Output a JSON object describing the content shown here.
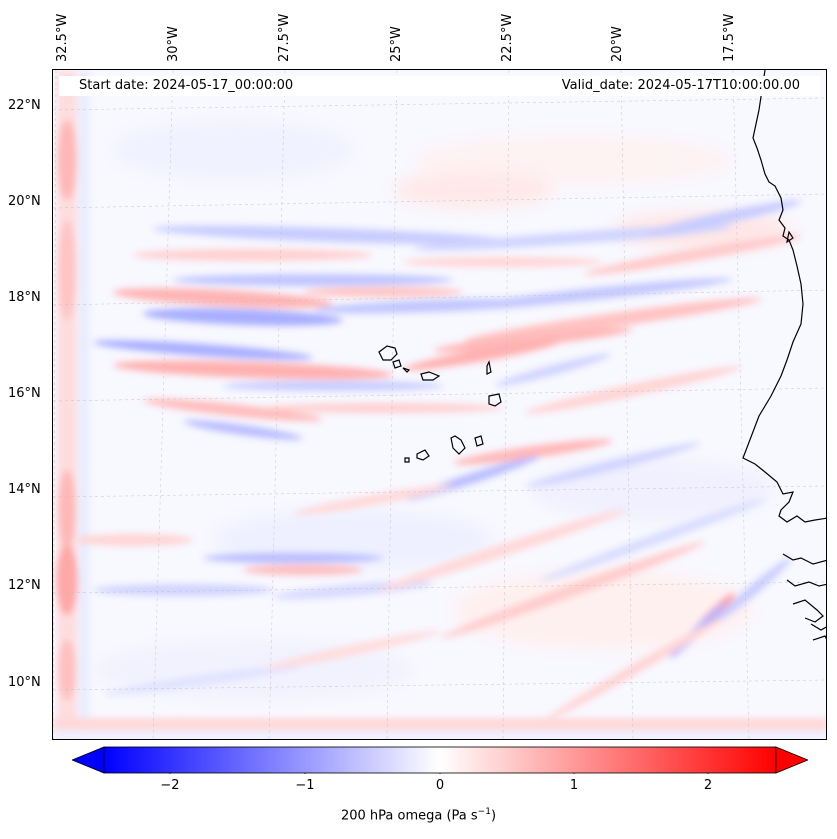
{
  "map": {
    "start_date": "Start date: 2024-05-17_00:00:00",
    "valid_date": "Valid_date: 2024-05-17T10:00:00.00",
    "longitude_labels": [
      "32.5°W",
      "30°W",
      "27.5°W",
      "25°W",
      "22.5°W",
      "20°W",
      "17.5°W"
    ],
    "latitude_labels": [
      "22°N",
      "20°N",
      "18°N",
      "16°N",
      "14°N",
      "12°N",
      "10°N"
    ],
    "field": "200 hPa omega",
    "gridlines": true
  },
  "colorbar": {
    "label_text": "200 hPa omega (Pa s",
    "label_exponent": "−1",
    "label_close": ")",
    "ticks": [
      "−2",
      "−1",
      "0",
      "1",
      "2"
    ],
    "min": -2.6,
    "max": 2.6,
    "low_color": "#0000ff",
    "mid_color": "#ffffff",
    "high_color": "#ff0000",
    "extend": "both"
  }
}
